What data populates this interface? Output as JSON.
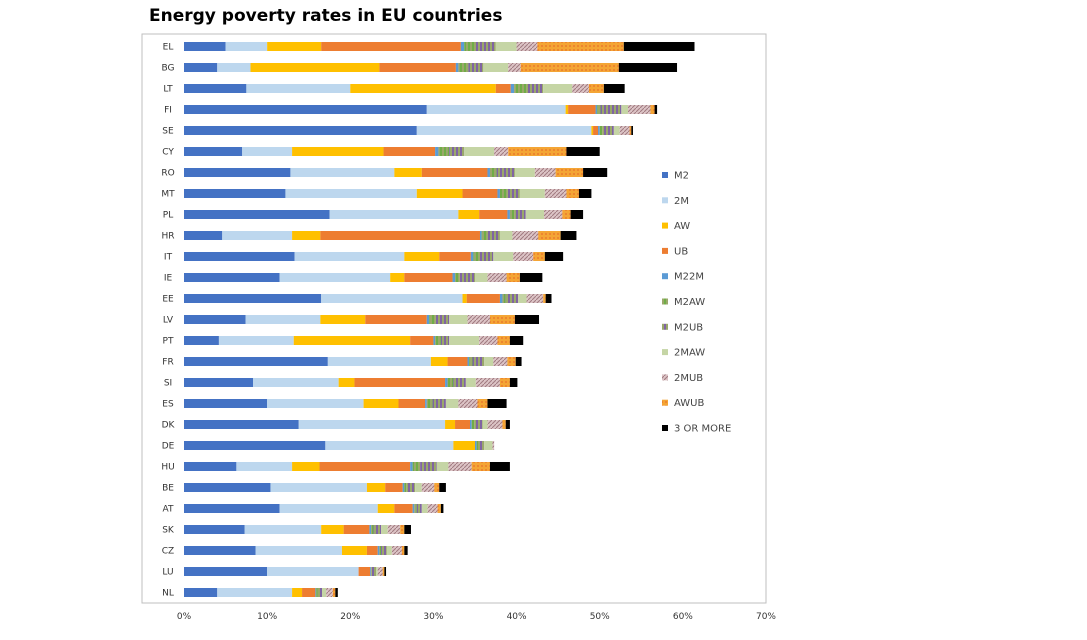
{
  "chart_data": {
    "type": "bar",
    "orientation": "horizontal",
    "stacked": true,
    "title": "Energy poverty rates in EU countries",
    "xlabel": "",
    "ylabel": "",
    "xlim": [
      0,
      70
    ],
    "x_tick_labels": [
      "0%",
      "10%",
      "20%",
      "30%",
      "40%",
      "50%",
      "60%",
      "70%"
    ],
    "grid": false,
    "legend_position": "right",
    "categories": [
      "EL",
      "BG",
      "LT",
      "FI",
      "SE",
      "CY",
      "RO",
      "MT",
      "PL",
      "HR",
      "IT",
      "IE",
      "EE",
      "LV",
      "PT",
      "FR",
      "SI",
      "ES",
      "DK",
      "DE",
      "HU",
      "BE",
      "AT",
      "SK",
      "CZ",
      "LU",
      "NL"
    ],
    "series": [
      {
        "name": "M2",
        "color": "#4472c4",
        "pattern": "solid",
        "values": [
          5,
          4,
          7.5,
          29.2,
          28,
          7,
          12.8,
          12.2,
          17.5,
          4.6,
          13.3,
          11.5,
          16.5,
          7.4,
          4.2,
          17.3,
          8.3,
          10,
          13.8,
          17,
          6.3,
          10.4,
          11.5,
          7.3,
          8.6,
          10,
          4
        ]
      },
      {
        "name": "2M",
        "color": "#bdd7ee",
        "pattern": "solid",
        "values": [
          5,
          4,
          12.5,
          16.7,
          21,
          6,
          12.5,
          15.8,
          15.5,
          8.4,
          13.2,
          13.3,
          17,
          9,
          9,
          12.4,
          10.3,
          11.6,
          17.6,
          15.4,
          6.7,
          11.6,
          11.8,
          9.2,
          10.4,
          11,
          9
        ]
      },
      {
        "name": "AW",
        "color": "#ffc000",
        "pattern": "solid",
        "values": [
          6.5,
          15.5,
          17.5,
          0.3,
          0.2,
          11,
          3.3,
          5.5,
          2.5,
          3.4,
          4.2,
          1.7,
          0.5,
          5.4,
          14,
          2,
          1.9,
          4.2,
          1.2,
          2.6,
          3.3,
          2.2,
          2,
          2.7,
          3,
          0,
          1.2
        ]
      },
      {
        "name": "UB",
        "color": "#ed7d31",
        "pattern": "solid",
        "values": [
          16.8,
          9.2,
          1.8,
          3.3,
          0.6,
          6.2,
          7.9,
          4.2,
          3.4,
          19.2,
          3.8,
          5.8,
          4,
          7.4,
          2.8,
          2.4,
          10.9,
          3.2,
          1.8,
          0,
          10.9,
          2.1,
          2.2,
          3.1,
          1.3,
          1.4,
          1.6
        ]
      },
      {
        "name": "M22M",
        "color": "#5b9bd5",
        "pattern": "solid",
        "values": [
          0.4,
          0.3,
          0.4,
          0.2,
          0.2,
          0.4,
          0.3,
          0.3,
          0.3,
          0.2,
          0.3,
          0.3,
          0.3,
          0.3,
          0.2,
          0.2,
          0.3,
          0.2,
          0.2,
          0.2,
          0.3,
          0.2,
          0.2,
          0.2,
          0.2,
          0.1,
          0.1
        ]
      },
      {
        "name": "M2AW",
        "color": "#70ad47",
        "pattern": "vstripe",
        "values": [
          1.3,
          1.2,
          1.5,
          0.4,
          0.3,
          1.3,
          0.8,
          0.9,
          0.6,
          0.7,
          0.8,
          0.5,
          0.4,
          0.8,
          0.7,
          0.4,
          0.7,
          0.7,
          0.3,
          0.4,
          0.9,
          0.3,
          0.3,
          0.3,
          0.2,
          0.1,
          0.2
        ]
      },
      {
        "name": "M2UB",
        "color": "#8064a2",
        "pattern": "vstripe",
        "values": [
          2.5,
          1.8,
          2,
          2.5,
          1.4,
          1.8,
          2.2,
          1.5,
          1.3,
          1.5,
          1.6,
          1.9,
          1.5,
          1.6,
          1,
          1.4,
          1.5,
          1.6,
          1,
          0.5,
          2,
          1,
          0.6,
          0.9,
          0.7,
          0.5,
          0.5
        ]
      },
      {
        "name": "2MAW",
        "color": "#c5d5a5",
        "pattern": "solid",
        "values": [
          2.5,
          3,
          3.5,
          0.8,
          0.7,
          3.6,
          2.4,
          3,
          2.2,
          1.5,
          2.4,
          1.5,
          1,
          2.2,
          3.6,
          1.1,
          1.2,
          1.5,
          0.6,
          1,
          1.4,
          0.8,
          0.7,
          0.8,
          0.6,
          0.2,
          0.5
        ]
      },
      {
        "name": "2MUB",
        "color": "#c9a3a8",
        "pattern": "hatch",
        "values": [
          2.5,
          1.5,
          2,
          2.7,
          1.2,
          1.7,
          2.5,
          2.6,
          2.2,
          3.1,
          2.4,
          2.3,
          2,
          2.7,
          2.2,
          1.7,
          2.9,
          2.3,
          1.8,
          0.2,
          2.8,
          1.5,
          1.2,
          1.5,
          1.2,
          0.6,
          0.8
        ]
      },
      {
        "name": "AWUB",
        "color": "#f4a535",
        "pattern": "dots",
        "values": [
          10.4,
          11.8,
          1.8,
          0.5,
          0.2,
          7,
          3.3,
          1.5,
          1,
          2.7,
          1.4,
          1.6,
          0.3,
          3,
          1.5,
          1,
          1.2,
          1.2,
          0.4,
          0,
          2.2,
          0.6,
          0.4,
          0.5,
          0.3,
          0.2,
          0.3
        ]
      },
      {
        "name": "3 OR MORE",
        "color": "#000000",
        "pattern": "solid",
        "values": [
          8.5,
          7,
          2.5,
          0.3,
          0.2,
          4,
          2.9,
          1.5,
          1.5,
          1.9,
          2.2,
          2.7,
          0.7,
          2.9,
          1.6,
          0.7,
          0.9,
          2.3,
          0.5,
          0,
          2.4,
          0.8,
          0.3,
          0.8,
          0.4,
          0.2,
          0.3
        ]
      }
    ]
  }
}
